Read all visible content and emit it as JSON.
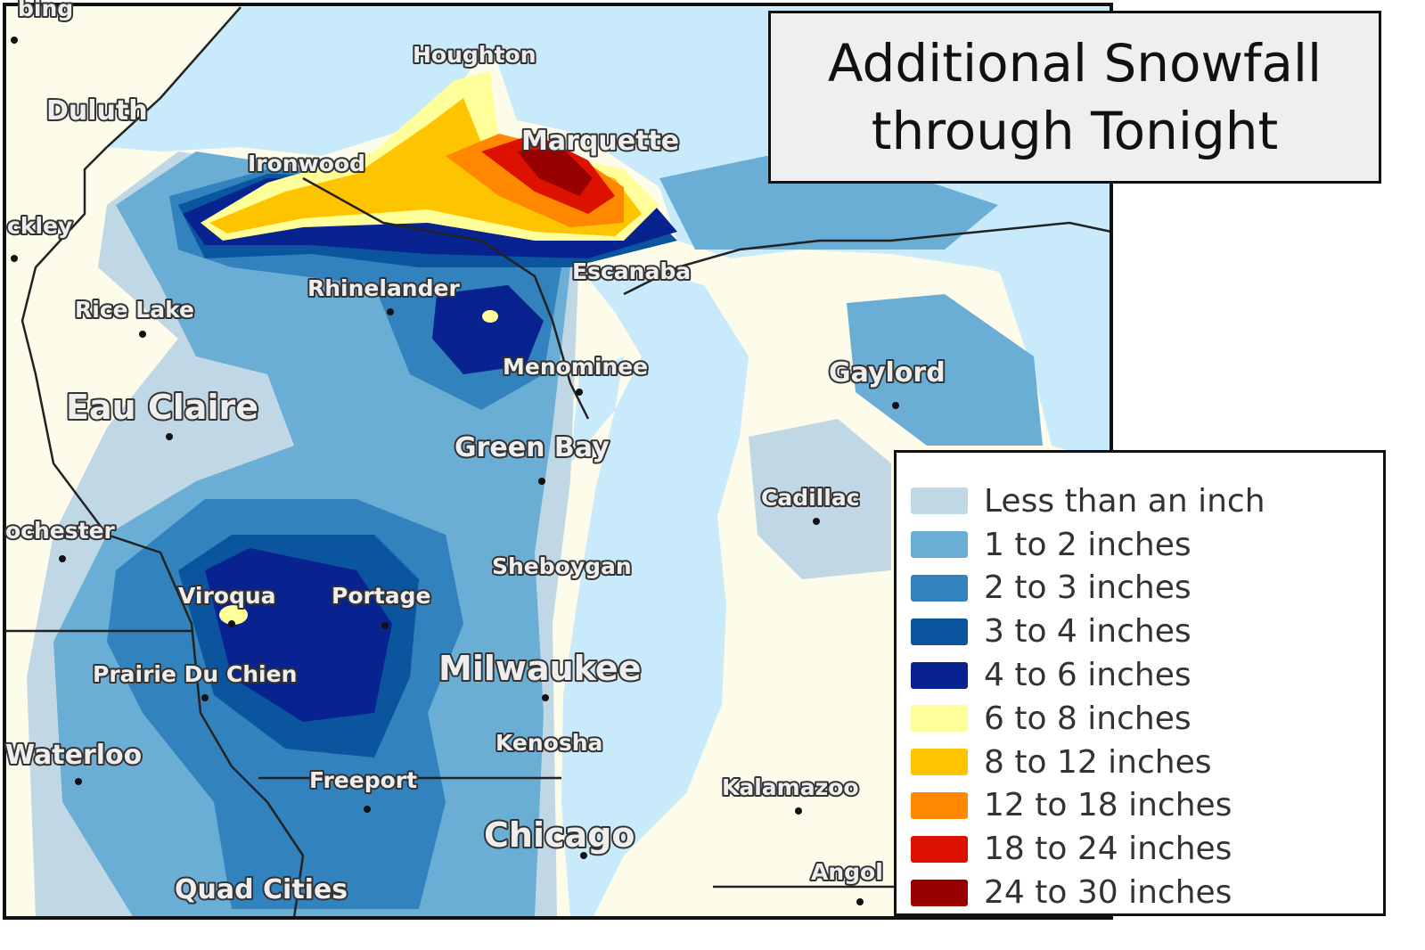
{
  "title": {
    "line1": "Additional Snowfall",
    "line2": "through Tonight"
  },
  "colors": {
    "land": "#fdfbea",
    "water": "#c8eafb",
    "border": "#222222"
  },
  "legend": [
    {
      "label": "Less than an inch",
      "color": "#c0d8e6"
    },
    {
      "label": "1 to 2 inches",
      "color": "#6aaed6"
    },
    {
      "label": "2 to 3 inches",
      "color": "#3282bd"
    },
    {
      "label": "3 to 4 inches",
      "color": "#0b559f"
    },
    {
      "label": "4 to 6 inches",
      "color": "#08228f"
    },
    {
      "label": "6 to 8 inches",
      "color": "#ffff99"
    },
    {
      "label": "8 to 12 inches",
      "color": "#ffc400"
    },
    {
      "label": "12 to 18 inches",
      "color": "#ff8800"
    },
    {
      "label": "18 to 24 inches",
      "color": "#dd1100"
    },
    {
      "label": "24 to 30 inches",
      "color": "#990000"
    }
  ],
  "cities": {
    "bing": "bing",
    "duluth": "Duluth",
    "houghton": "Houghton",
    "marquette": "Marquette",
    "ironwood": "Ironwood",
    "ckley": "ckley",
    "rhinelander": "Rhinelander",
    "escanaba": "Escanaba",
    "rice_lake": "Rice Lake",
    "menominee": "Menominee",
    "gaylord": "Gaylord",
    "eau_claire": "Eau Claire",
    "green_bay": "Green Bay",
    "cadillac": "Cadillac",
    "rochester": "ochester",
    "sheboygan": "Sheboygan",
    "viroqua": "Viroqua",
    "portage": "Portage",
    "milwaukee": "Milwaukee",
    "prairie_du_chien": "Prairie Du Chien",
    "waterloo": "Waterloo",
    "kenosha": "Kenosha",
    "freeport": "Freeport",
    "kalamazoo": "Kalamazoo",
    "chicago": "Chicago",
    "quad_cities": "Quad Cities",
    "angola": "Angol"
  }
}
